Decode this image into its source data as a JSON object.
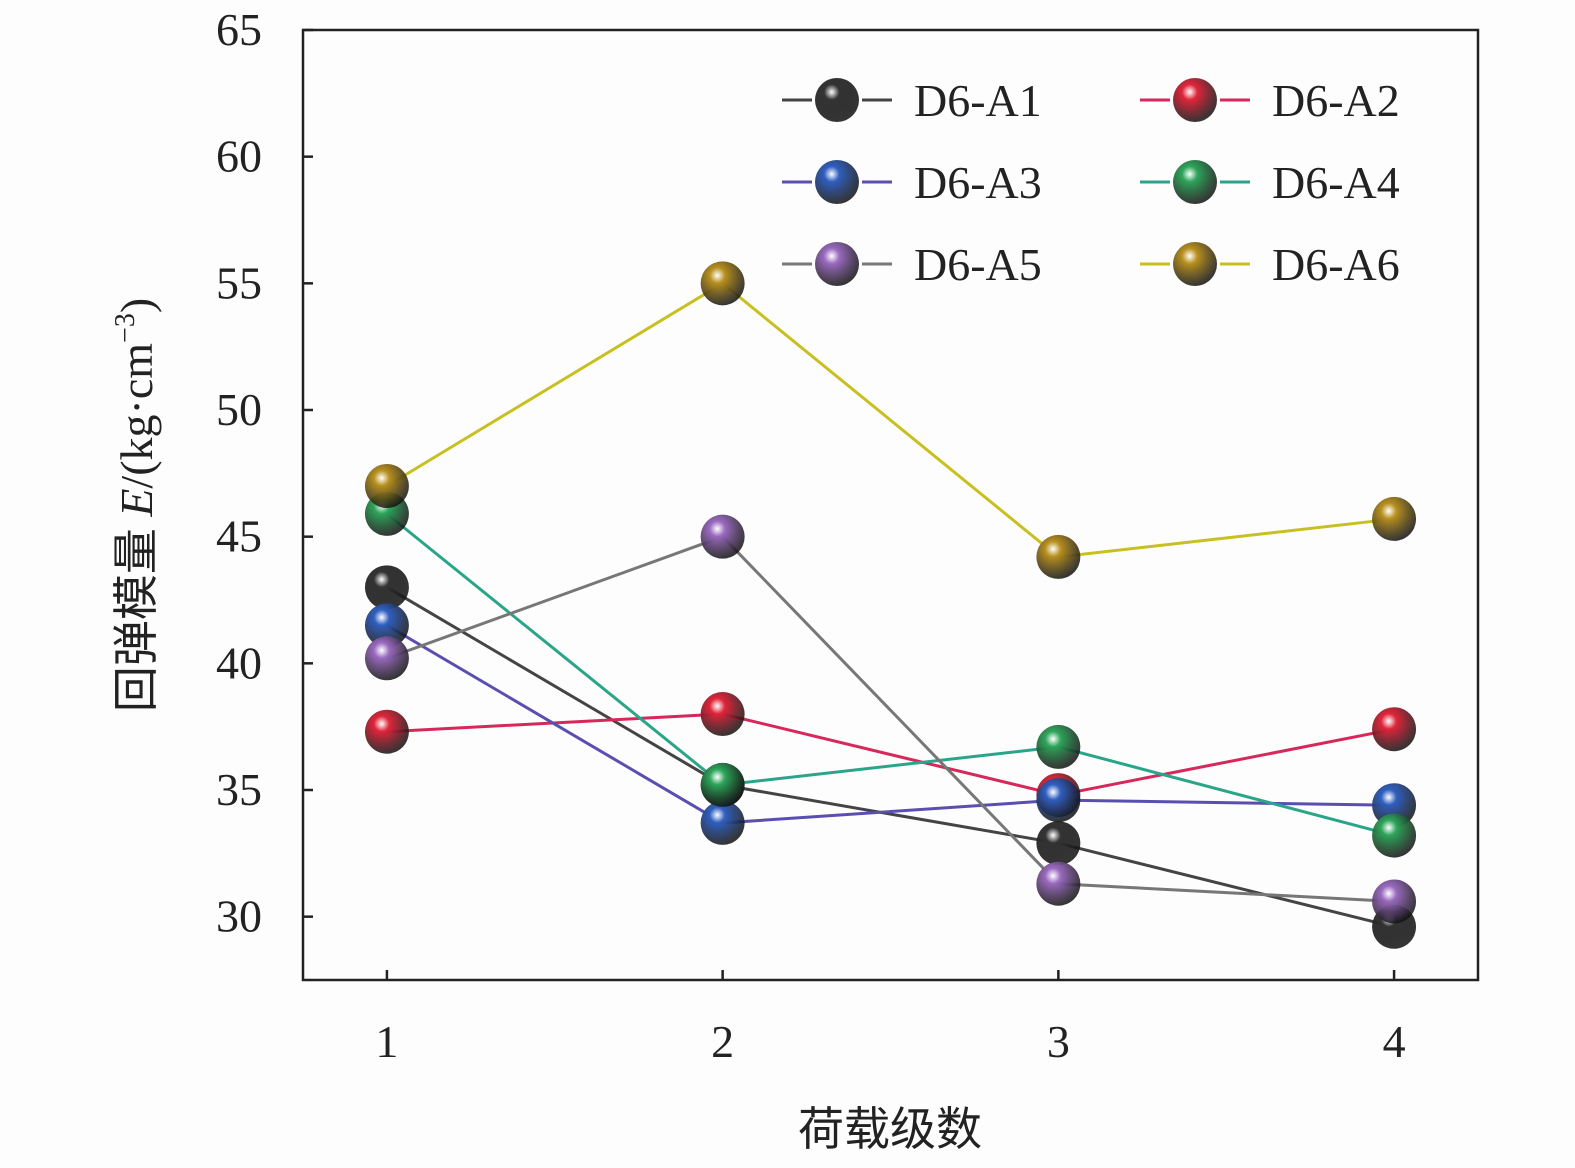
{
  "chart_data": {
    "type": "line",
    "title": "",
    "xlabel": "荷载级数",
    "ylabel": "回弹模量 E/(kg·cm⁻³)",
    "ylabel_parts": {
      "prefix": "回弹模量 ",
      "var": "E",
      "unit": "/(kg·cm",
      "exp": "−3",
      "close": ")"
    },
    "x": [
      1,
      2,
      3,
      4
    ],
    "x_ticks": [
      "1",
      "2",
      "3",
      "4"
    ],
    "y_ticks": [
      "30",
      "35",
      "40",
      "45",
      "50",
      "55",
      "60",
      "65"
    ],
    "ylim": [
      27.5,
      65
    ],
    "xlim": [
      0.75,
      4.25
    ],
    "grid": false,
    "legend_position": "top-right",
    "series": [
      {
        "name": "D6-A1",
        "values": [
          43.0,
          35.2,
          32.9,
          29.6
        ],
        "color": "#333333",
        "line": "#444444"
      },
      {
        "name": "D6-A2",
        "values": [
          37.3,
          38.0,
          34.8,
          37.4
        ],
        "color": "#e0253a",
        "line": "#d6285a"
      },
      {
        "name": "D6-A3",
        "values": [
          41.5,
          33.7,
          34.6,
          34.4
        ],
        "color": "#2f5fc0",
        "line": "#5a4fb0"
      },
      {
        "name": "D6-A4",
        "values": [
          45.9,
          35.2,
          36.7,
          33.2
        ],
        "color": "#2ea55a",
        "line": "#2aa58a"
      },
      {
        "name": "D6-A5",
        "values": [
          40.2,
          45.0,
          31.3,
          30.6
        ],
        "color": "#9a6ac0",
        "line": "#777777"
      },
      {
        "name": "D6-A6",
        "values": [
          47.0,
          55.0,
          44.2,
          45.7
        ],
        "color": "#b8901e",
        "line": "#c8c020"
      }
    ]
  }
}
